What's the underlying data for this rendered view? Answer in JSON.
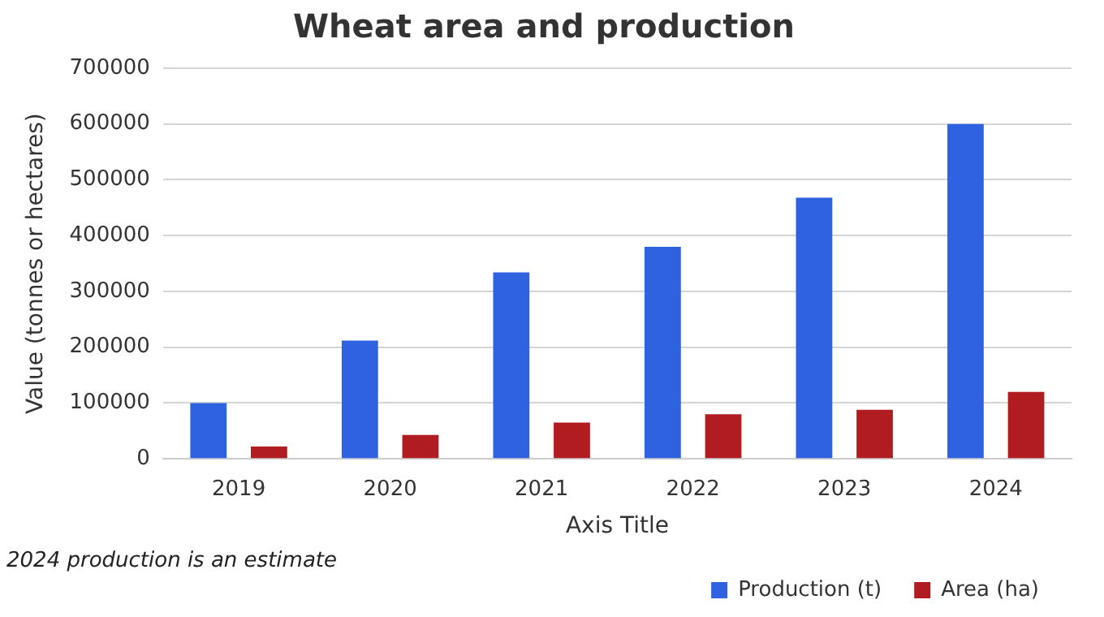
{
  "chart_data": {
    "type": "bar",
    "title": "Wheat area and production",
    "xlabel": "Axis Title",
    "ylabel": "Value (tonnes or hectares)",
    "categories": [
      "2019",
      "2020",
      "2021",
      "2022",
      "2023",
      "2024"
    ],
    "series": [
      {
        "name": "Production (t)",
        "color": "#2f62e0",
        "values": [
          100000,
          212000,
          334000,
          380000,
          468000,
          600000
        ]
      },
      {
        "name": "Area (ha)",
        "color": "#b01c20",
        "values": [
          22000,
          43000,
          65000,
          80000,
          88000,
          120000
        ]
      }
    ],
    "ylim": [
      0,
      700000
    ],
    "yticks": [
      0,
      100000,
      200000,
      300000,
      400000,
      500000,
      600000,
      700000
    ],
    "grid": "y",
    "legend": "bottom",
    "annotations": [
      "2024 production is an estimate"
    ]
  }
}
